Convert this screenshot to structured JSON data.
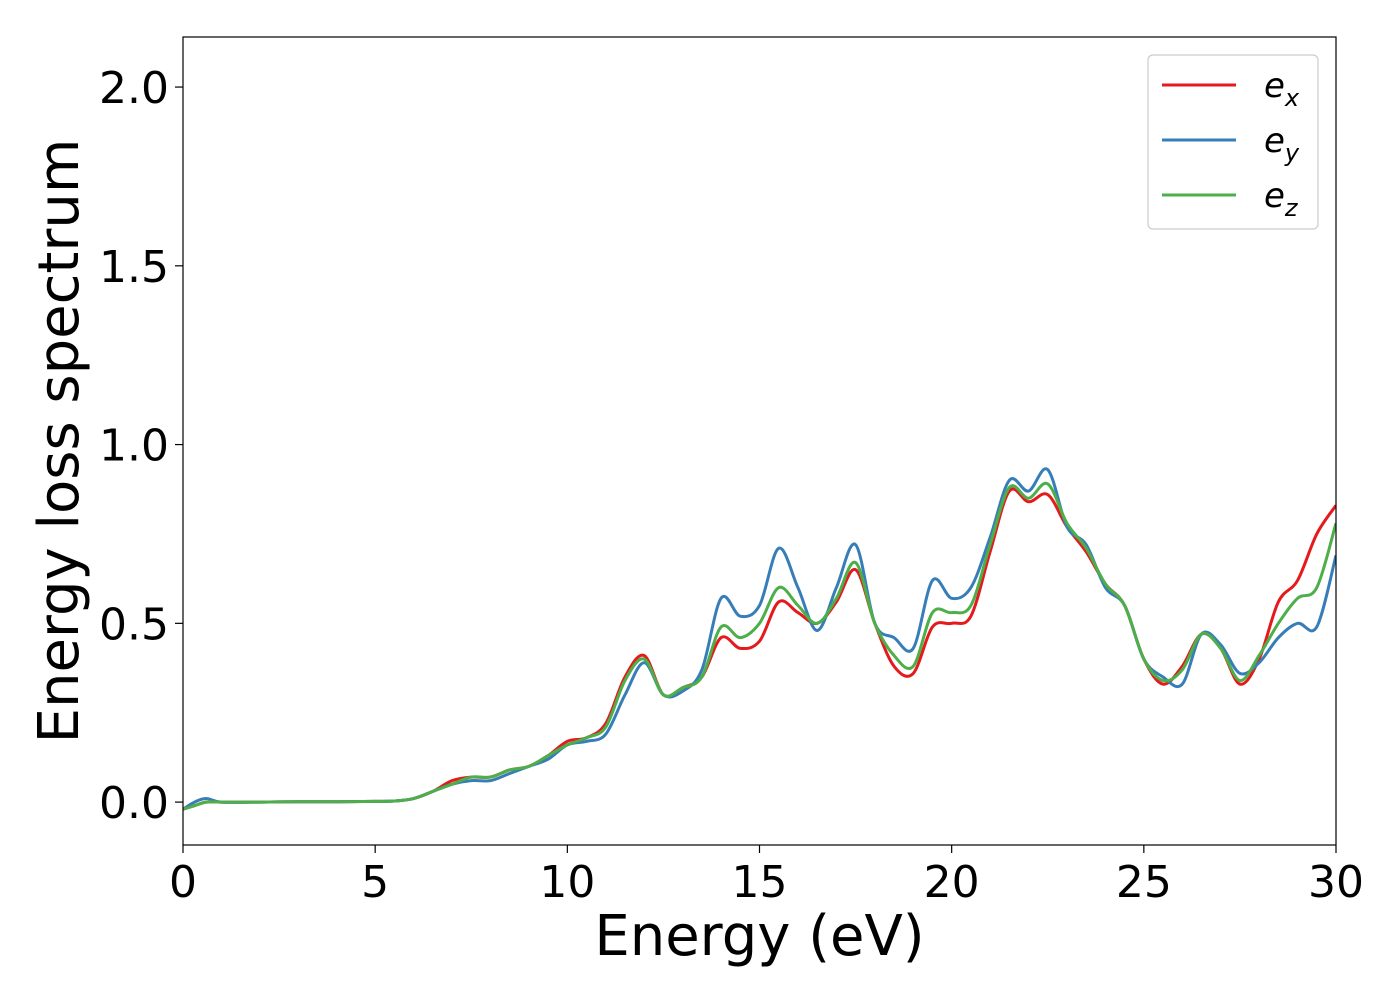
{
  "chart_data": {
    "type": "line",
    "xlabel": "Energy (eV)",
    "ylabel": "Energy loss spectrum",
    "xlim": [
      0,
      30
    ],
    "ylim": [
      -0.12,
      2.14
    ],
    "xticks": [
      0,
      5,
      10,
      15,
      20,
      25,
      30
    ],
    "yticks": [
      0.0,
      0.5,
      1.0,
      1.5,
      2.0
    ],
    "xtick_labels": [
      "0",
      "5",
      "10",
      "15",
      "20",
      "25",
      "30"
    ],
    "ytick_labels": [
      "0.0",
      "0.5",
      "1.0",
      "1.5",
      "2.0"
    ],
    "legend_position": "top-right",
    "grid": false,
    "series": [
      {
        "name": "e_x",
        "label_base": "e",
        "label_sub": "x",
        "color": "#e41a1c",
        "x": [
          0,
          0.3,
          0.6,
          1,
          2,
          3,
          4,
          5,
          5.5,
          6,
          6.5,
          7,
          7.5,
          8,
          8.5,
          9,
          9.5,
          10,
          10.5,
          11,
          11.5,
          12,
          12.5,
          13,
          13.5,
          14,
          14.5,
          15,
          15.5,
          16,
          16.5,
          17,
          17.5,
          18,
          18.5,
          19,
          19.5,
          20,
          20.5,
          21,
          21.5,
          22,
          22.5,
          23,
          23.5,
          24,
          24.5,
          25,
          25.5,
          26,
          26.5,
          27,
          27.5,
          28,
          28.5,
          29,
          29.5,
          30
        ],
        "y": [
          -0.02,
          -0.01,
          0.0,
          0.0,
          0.0,
          0.001,
          0.001,
          0.002,
          0.003,
          0.01,
          0.03,
          0.06,
          0.07,
          0.07,
          0.09,
          0.1,
          0.13,
          0.17,
          0.18,
          0.22,
          0.35,
          0.41,
          0.3,
          0.32,
          0.35,
          0.46,
          0.43,
          0.45,
          0.56,
          0.53,
          0.5,
          0.56,
          0.65,
          0.5,
          0.38,
          0.36,
          0.49,
          0.5,
          0.52,
          0.7,
          0.87,
          0.84,
          0.86,
          0.77,
          0.7,
          0.61,
          0.55,
          0.4,
          0.33,
          0.38,
          0.47,
          0.43,
          0.33,
          0.4,
          0.56,
          0.62,
          0.75,
          0.83
        ]
      },
      {
        "name": "e_y",
        "label_base": "e",
        "label_sub": "y",
        "color": "#377eb8",
        "x": [
          0,
          0.3,
          0.6,
          1,
          2,
          3,
          4,
          5,
          5.5,
          6,
          6.5,
          7,
          7.5,
          8,
          8.5,
          9,
          9.5,
          10,
          10.5,
          11,
          11.5,
          12,
          12.5,
          13,
          13.5,
          14,
          14.5,
          15,
          15.5,
          16,
          16.5,
          17,
          17.5,
          18,
          18.5,
          19,
          19.5,
          20,
          20.5,
          21,
          21.5,
          22,
          22.5,
          23,
          23.5,
          24,
          24.5,
          25,
          25.5,
          26,
          26.5,
          27,
          27.5,
          28,
          28.5,
          29,
          29.5,
          30
        ],
        "y": [
          -0.02,
          0.0,
          0.01,
          0.0,
          0.0,
          0.001,
          0.001,
          0.002,
          0.003,
          0.01,
          0.03,
          0.05,
          0.06,
          0.06,
          0.08,
          0.1,
          0.12,
          0.16,
          0.17,
          0.19,
          0.3,
          0.39,
          0.3,
          0.31,
          0.37,
          0.57,
          0.52,
          0.55,
          0.71,
          0.6,
          0.48,
          0.6,
          0.72,
          0.5,
          0.46,
          0.43,
          0.62,
          0.57,
          0.6,
          0.74,
          0.9,
          0.87,
          0.93,
          0.77,
          0.72,
          0.6,
          0.55,
          0.4,
          0.35,
          0.33,
          0.47,
          0.44,
          0.36,
          0.39,
          0.46,
          0.5,
          0.49,
          0.69
        ]
      },
      {
        "name": "e_z",
        "label_base": "e",
        "label_sub": "z",
        "color": "#4daf4a",
        "x": [
          0,
          0.3,
          0.6,
          1,
          2,
          3,
          4,
          5,
          5.5,
          6,
          6.5,
          7,
          7.5,
          8,
          8.5,
          9,
          9.5,
          10,
          10.5,
          11,
          11.5,
          12,
          12.5,
          13,
          13.5,
          14,
          14.5,
          15,
          15.5,
          16,
          16.5,
          17,
          17.5,
          18,
          18.5,
          19,
          19.5,
          20,
          20.5,
          21,
          21.5,
          22,
          22.5,
          23,
          23.5,
          24,
          24.5,
          25,
          25.5,
          26,
          26.5,
          27,
          27.5,
          28,
          28.5,
          29,
          29.5,
          30
        ],
        "y": [
          -0.02,
          -0.01,
          0.0,
          0.0,
          0.0,
          0.001,
          0.001,
          0.002,
          0.003,
          0.01,
          0.03,
          0.05,
          0.07,
          0.07,
          0.09,
          0.1,
          0.13,
          0.16,
          0.18,
          0.21,
          0.34,
          0.4,
          0.3,
          0.32,
          0.35,
          0.49,
          0.46,
          0.5,
          0.6,
          0.55,
          0.5,
          0.57,
          0.67,
          0.5,
          0.41,
          0.38,
          0.53,
          0.53,
          0.55,
          0.72,
          0.88,
          0.85,
          0.89,
          0.78,
          0.71,
          0.61,
          0.55,
          0.4,
          0.34,
          0.37,
          0.47,
          0.43,
          0.34,
          0.41,
          0.5,
          0.57,
          0.6,
          0.78
        ]
      }
    ]
  }
}
